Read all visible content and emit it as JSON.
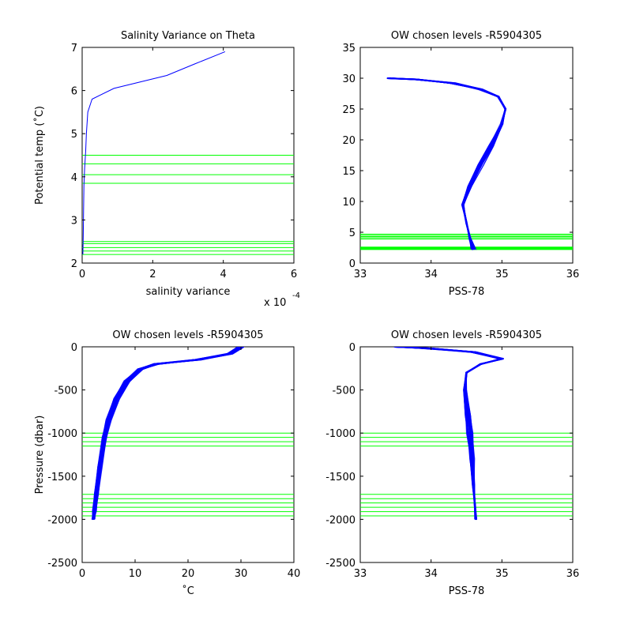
{
  "chart_data": [
    {
      "type": "line",
      "title": "Salinity Variance on Theta",
      "xlabel": "salinity variance",
      "ylabel": "Potential temp (˚C)",
      "x_exponent_label": "x 10",
      "x_exponent_power": "-4",
      "xlim": [
        0,
        6
      ],
      "ylim": [
        2,
        7
      ],
      "xticks": [
        "0",
        "2",
        "4",
        "6"
      ],
      "yticks": [
        "2",
        "3",
        "4",
        "5",
        "6",
        "7"
      ],
      "grid": false,
      "colors": {
        "series": "#0000ff",
        "levels": "#00ff00"
      },
      "series": [
        {
          "x": [
            0.02,
            0.03,
            0.04,
            0.05,
            0.07,
            0.1,
            0.12,
            0.16,
            0.28,
            0.9,
            2.4,
            3.2,
            4.05
          ],
          "y": [
            2.2,
            2.6,
            3.2,
            3.8,
            4.2,
            4.6,
            5.0,
            5.5,
            5.8,
            6.05,
            6.35,
            6.62,
            6.9
          ]
        }
      ],
      "levels": [
        2.2,
        2.28,
        2.36,
        2.45,
        2.5,
        3.85,
        4.05,
        4.3,
        4.5
      ]
    },
    {
      "type": "line",
      "title": "OW chosen levels -R5904305",
      "xlabel": "PSS-78",
      "ylabel": "",
      "xlim": [
        33,
        36
      ],
      "ylim": [
        0,
        35
      ],
      "xticks": [
        "33",
        "34",
        "35",
        "36"
      ],
      "yticks": [
        "0",
        "5",
        "10",
        "15",
        "20",
        "25",
        "30",
        "35"
      ],
      "grid": false,
      "colors": {
        "series": "#0000ff",
        "levels": "#00ff00"
      },
      "series": [
        {
          "x": [
            33.4,
            33.8,
            34.3,
            34.7,
            34.95,
            35.05,
            35.0,
            34.85,
            34.7,
            34.55,
            34.45,
            34.5,
            34.55,
            34.6
          ],
          "y": [
            30.0,
            29.8,
            29.2,
            28.2,
            27.0,
            25.0,
            22.5,
            19.0,
            16.0,
            12.5,
            9.5,
            6.5,
            4.0,
            2.2
          ]
        }
      ],
      "levels": [
        2.2,
        2.3,
        2.4,
        2.5,
        2.6,
        3.9,
        4.1,
        4.3,
        4.5,
        4.7
      ]
    },
    {
      "type": "line",
      "title": "OW chosen levels -R5904305",
      "xlabel": "˚C",
      "ylabel": "Pressure (dbar)",
      "xlim": [
        0,
        40
      ],
      "ylim": [
        -2500,
        0
      ],
      "xticks": [
        "0",
        "10",
        "20",
        "30",
        "40"
      ],
      "yticks": [
        "-2500",
        "-2000",
        "-1500",
        "-1000",
        "-500",
        "0"
      ],
      "grid": false,
      "colors": {
        "series": "#0000ff",
        "levels": "#00ff00"
      },
      "series": [
        {
          "x": [
            30.0,
            28.0,
            22.0,
            14.0,
            11.0,
            8.5,
            6.5,
            5.0,
            4.2,
            3.3,
            2.7,
            2.3,
            2.1
          ],
          "y": [
            0,
            -80,
            -150,
            -200,
            -260,
            -400,
            -600,
            -850,
            -1050,
            -1400,
            -1700,
            -1900,
            -2000
          ]
        }
      ],
      "levels": [
        -1000,
        -1050,
        -1100,
        -1150,
        -1710,
        -1760,
        -1810,
        -1860,
        -1910,
        -1960
      ]
    },
    {
      "type": "line",
      "title": "OW chosen levels -R5904305",
      "xlabel": "PSS-78",
      "ylabel": "",
      "xlim": [
        33,
        36
      ],
      "ylim": [
        -2500,
        0
      ],
      "xticks": [
        "33",
        "34",
        "35",
        "36"
      ],
      "yticks": [
        "-2500",
        "-2000",
        "-1500",
        "-1000",
        "-500",
        "0"
      ],
      "grid": false,
      "colors": {
        "series": "#0000ff",
        "levels": "#00ff00"
      },
      "series": [
        {
          "x": [
            33.5,
            34.0,
            34.6,
            35.0,
            34.7,
            34.5,
            34.48,
            34.52,
            34.55,
            34.58,
            34.6,
            34.62,
            34.63
          ],
          "y": [
            0,
            -20,
            -60,
            -140,
            -200,
            -300,
            -500,
            -800,
            -1000,
            -1300,
            -1600,
            -1850,
            -2000
          ]
        }
      ],
      "levels": [
        -1000,
        -1050,
        -1100,
        -1150,
        -1710,
        -1760,
        -1810,
        -1860,
        -1910,
        -1960
      ]
    }
  ]
}
